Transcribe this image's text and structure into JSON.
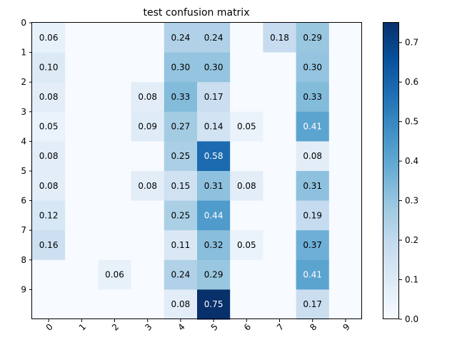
{
  "chart_data": {
    "type": "heatmap",
    "title": "test confusion matrix",
    "x_ticks": [
      "0",
      "1",
      "2",
      "3",
      "4",
      "5",
      "6",
      "7",
      "8",
      "9"
    ],
    "y_ticks": [
      "0",
      "1",
      "2",
      "3",
      "4",
      "5",
      "6",
      "7",
      "8",
      "9"
    ],
    "colormap": "Blues",
    "vmin": 0.0,
    "vmax": 0.75,
    "colorbar_ticks": [
      "0.0",
      "0.1",
      "0.2",
      "0.3",
      "0.4",
      "0.5",
      "0.6",
      "0.7"
    ],
    "matrix": [
      [
        0.06,
        0,
        0,
        0,
        0.24,
        0.24,
        0,
        0.18,
        0.29,
        0
      ],
      [
        0.1,
        0,
        0,
        0,
        0.3,
        0.3,
        0,
        0,
        0.3,
        0
      ],
      [
        0.08,
        0,
        0,
        0.08,
        0.33,
        0.17,
        0,
        0,
        0.33,
        0
      ],
      [
        0.05,
        0,
        0,
        0.09,
        0.27,
        0.14,
        0.05,
        0,
        0.41,
        0
      ],
      [
        0.08,
        0,
        0,
        0,
        0.25,
        0.58,
        0,
        0,
        0.08,
        0
      ],
      [
        0.08,
        0,
        0,
        0.08,
        0.15,
        0.31,
        0.08,
        0,
        0.31,
        0
      ],
      [
        0.12,
        0,
        0,
        0,
        0.25,
        0.44,
        0,
        0,
        0.19,
        0
      ],
      [
        0.16,
        0,
        0,
        0,
        0.11,
        0.32,
        0.05,
        0,
        0.37,
        0
      ],
      [
        0,
        0,
        0.06,
        0,
        0.24,
        0.29,
        0,
        0,
        0.41,
        0
      ],
      [
        0,
        0,
        0,
        0,
        0.08,
        0.75,
        0,
        0,
        0.17,
        0
      ]
    ],
    "labels": [
      [
        "0.06",
        "",
        "",
        "",
        "0.24",
        "0.24",
        "",
        "0.18",
        "0.29",
        ""
      ],
      [
        "0.10",
        "",
        "",
        "",
        "0.30",
        "0.30",
        "",
        "",
        "0.30",
        ""
      ],
      [
        "0.08",
        "",
        "",
        "0.08",
        "0.33",
        "0.17",
        "",
        "",
        "0.33",
        ""
      ],
      [
        "0.05",
        "",
        "",
        "0.09",
        "0.27",
        "0.14",
        "0.05",
        "",
        "0.41",
        ""
      ],
      [
        "0.08",
        "",
        "",
        "",
        "0.25",
        "0.58",
        "",
        "",
        "0.08",
        ""
      ],
      [
        "0.08",
        "",
        "",
        "0.08",
        "0.15",
        "0.31",
        "0.08",
        "",
        "0.31",
        ""
      ],
      [
        "0.12",
        "",
        "",
        "",
        "0.25",
        "0.44",
        "",
        "",
        "0.19",
        ""
      ],
      [
        "0.16",
        "",
        "",
        "",
        "0.11",
        "0.32",
        "0.05",
        "",
        "0.37",
        ""
      ],
      [
        "",
        "",
        "0.06",
        "",
        "0.24",
        "0.29",
        "",
        "",
        "0.41",
        ""
      ],
      [
        "",
        "",
        "",
        "",
        "0.08",
        "0.75",
        "",
        "",
        "0.17",
        ""
      ]
    ]
  }
}
